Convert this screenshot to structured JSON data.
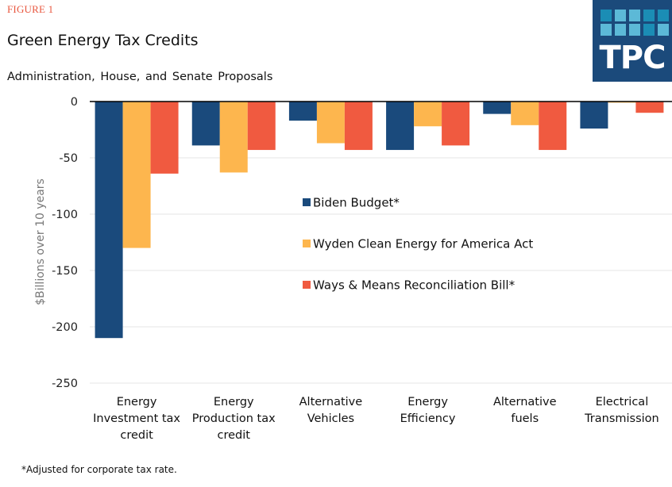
{
  "figure_label": "FIGURE 1",
  "logo": {
    "text": "TPC",
    "background": "#1b4a7b",
    "squares": [
      "#1b8db5",
      "#5cb9d7",
      "#5cb9d7",
      "#1b8db5",
      "#1b8db5",
      "#5cb9d7",
      "#5cb9d7",
      "#5cb9d7",
      "#1b8db5",
      "#5cb9d7"
    ]
  },
  "footnote": "*Adjusted for corporate tax rate.",
  "chart_data": {
    "type": "bar",
    "title": "Green Energy Tax Credits",
    "subtitle": "Administration, House, and Senate Proposals",
    "xlabel": "",
    "ylabel": "$Billions over 10 years",
    "ylim": [
      -250,
      0
    ],
    "yticks": [
      0,
      -50,
      -100,
      -150,
      -200,
      -250
    ],
    "grid": true,
    "legend_position": "center",
    "categories": [
      [
        "Energy",
        "Investment tax",
        "credit"
      ],
      [
        "Energy",
        "Production tax",
        "credit"
      ],
      [
        "Alternative",
        "Vehicles"
      ],
      [
        "Energy",
        "Efficiency"
      ],
      [
        "Alternative",
        "fuels"
      ],
      [
        "Electrical",
        "Transmission"
      ]
    ],
    "series": [
      {
        "name": "Biden Budget*",
        "color": "#1a4a7c",
        "values": [
          -210,
          -39,
          -17,
          -43,
          -11,
          -24
        ]
      },
      {
        "name": "Wyden Clean Energy for America Act",
        "color": "#fdb64e",
        "values": [
          -130,
          -63,
          -37,
          -22,
          -21,
          -1
        ]
      },
      {
        "name": "Ways & Means Reconciliation Bill*",
        "color": "#f05a40",
        "values": [
          -64,
          -43,
          -43,
          -39,
          -43,
          -10
        ]
      }
    ]
  }
}
